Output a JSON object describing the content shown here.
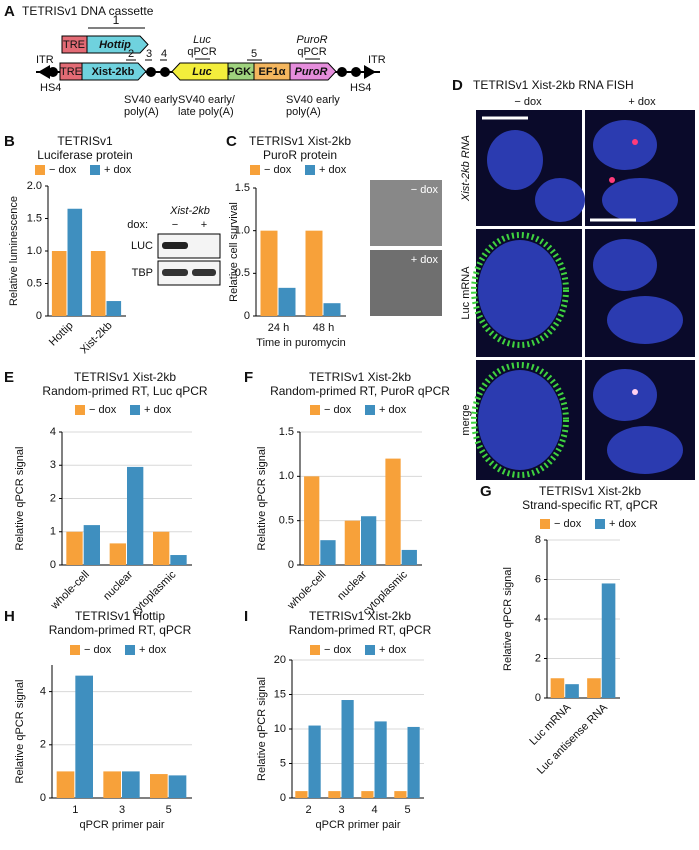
{
  "panel_labels": [
    "A",
    "B",
    "C",
    "D",
    "E",
    "F",
    "G",
    "H",
    "I"
  ],
  "diagram": {
    "title": "TETRISv1 DNA cassette",
    "primer_1": "1",
    "tre_top": "TRE",
    "hottip": "Hottip",
    "itr_left": "ITR",
    "hs4_left": "HS4",
    "tre": "TRE",
    "xist": "Xist-2kb",
    "primer_2": "2",
    "primer_3": "3",
    "primer_4": "4",
    "luc_qpcr": [
      "Luc",
      "qPCR"
    ],
    "luc": "Luc",
    "primer_5": "5",
    "pgk": "PGK-",
    "ef1a": "EF1α",
    "puror": "PuroR",
    "puror_qpcr": [
      "PuroR",
      "qPCR"
    ],
    "itr_right": "ITR",
    "hs4_right": "HS4",
    "polyA_1": [
      "SV40 early",
      "poly(A)"
    ],
    "polyA_2": [
      "SV40 early/",
      "late poly(A)"
    ],
    "polyA_3": [
      "SV40 early",
      "poly(A)"
    ]
  },
  "blot": {
    "gene": "Xist-2kb",
    "dox": "dox:",
    "minus": "−",
    "plus": "+",
    "bands": [
      "LUC",
      "TBP"
    ]
  },
  "survival_images": [
    "− dox",
    "+ dox"
  ],
  "fish": {
    "title": "TETRISv1 Xist-2kb RNA FISH",
    "columns": [
      "− dox",
      "+ dox"
    ],
    "rows": [
      "Xist-2kb RNA",
      "Luc mRNA",
      "merge"
    ]
  },
  "chart_data": [
    {
      "type": "bar",
      "title": "TETRISv1",
      "subtitle": "Luciferase protein",
      "ylabel": "Relative luminescence",
      "categories": [
        "Hottip",
        "Xist-2kb"
      ],
      "series": [
        {
          "name": "− dox",
          "color": "#f7a13a",
          "values": [
            1.0,
            1.0
          ]
        },
        {
          "name": "+ dox",
          "color": "#3f8fbf",
          "values": [
            1.65,
            0.23
          ]
        }
      ],
      "ylim": [
        0,
        2
      ],
      "yticks": [
        0,
        0.5,
        {
          "value": 1,
          "label": "1.0"
        },
        1.5,
        {
          "value": 2,
          "label": "2.0"
        }
      ],
      "grid": false
    },
    {
      "type": "bar",
      "title": "TETRISv1 Xist-2kb",
      "subtitle": "PuroR protein",
      "ylabel": "Relative cell survival",
      "xlabel": "Time in puromycin",
      "categories": [
        "24 h",
        "48 h"
      ],
      "series": [
        {
          "name": "− dox",
          "color": "#f7a13a",
          "values": [
            1.0,
            1.0
          ]
        },
        {
          "name": "+ dox",
          "color": "#3f8fbf",
          "values": [
            0.33,
            0.15
          ]
        }
      ],
      "ylim": [
        0,
        1.5
      ],
      "yticks": [
        0,
        0.5,
        {
          "value": 1,
          "label": "1.0"
        },
        1.5
      ],
      "grid": false
    },
    {
      "type": "bar",
      "title": "TETRISv1 Xist-2kb",
      "subtitle": "Random-primed RT, Luc qPCR",
      "ylabel": "Relative qPCR signal",
      "categories": [
        "whole-cell",
        "nuclear",
        "cytoplasmic"
      ],
      "series": [
        {
          "name": "− dox",
          "color": "#f7a13a",
          "values": [
            1.0,
            0.65,
            1.0
          ]
        },
        {
          "name": "+ dox",
          "color": "#3f8fbf",
          "values": [
            1.2,
            2.95,
            0.3
          ]
        }
      ],
      "ylim": [
        0,
        4
      ],
      "yticks": [
        0,
        1,
        2,
        3,
        4
      ],
      "grid": true
    },
    {
      "type": "bar",
      "title": "TETRISv1 Xist-2kb",
      "subtitle": "Random-primed RT, PuroR qPCR",
      "ylabel": "Relative qPCR signal",
      "categories": [
        "whole-cell",
        "nuclear",
        "cytoplasmic"
      ],
      "series": [
        {
          "name": "− dox",
          "color": "#f7a13a",
          "values": [
            1.0,
            0.5,
            1.2
          ]
        },
        {
          "name": "+ dox",
          "color": "#3f8fbf",
          "values": [
            0.28,
            0.55,
            0.17
          ]
        }
      ],
      "ylim": [
        0,
        1.5
      ],
      "yticks": [
        0,
        0.5,
        {
          "value": 1,
          "label": "1.0"
        },
        1.5
      ],
      "grid": true
    },
    {
      "type": "bar",
      "title": "TETRISv1 Xist-2kb",
      "subtitle": "Strand-specific RT, qPCR",
      "ylabel": "Relative qPCR signal",
      "categories": [
        "Luc mRNA",
        "Luc antisense RNA"
      ],
      "series": [
        {
          "name": "− dox",
          "color": "#f7a13a",
          "values": [
            1.0,
            1.0
          ]
        },
        {
          "name": "+ dox",
          "color": "#3f8fbf",
          "values": [
            0.7,
            5.8
          ]
        }
      ],
      "ylim": [
        0,
        8
      ],
      "yticks": [
        0,
        2,
        4,
        6,
        8
      ],
      "grid": true
    },
    {
      "type": "bar",
      "title": "TETRISv1 Hottip",
      "subtitle": "Random-primed RT, qPCR",
      "ylabel": "Relative qPCR signal",
      "xlabel": "qPCR primer pair",
      "categories": [
        "1",
        "3",
        "5"
      ],
      "series": [
        {
          "name": "− dox",
          "color": "#f7a13a",
          "values": [
            1.0,
            1.0,
            0.9
          ]
        },
        {
          "name": "+ dox",
          "color": "#3f8fbf",
          "values": [
            4.6,
            1.0,
            0.85
          ]
        }
      ],
      "ylim": [
        0,
        5
      ],
      "yticks": [
        0,
        2,
        4
      ],
      "grid": true
    },
    {
      "type": "bar",
      "title": "TETRISv1 Xist-2kb",
      "subtitle": "Random-primed RT, qPCR",
      "ylabel": "Relative qPCR signal",
      "xlabel": "qPCR primer pair",
      "categories": [
        "2",
        "3",
        "4",
        "5"
      ],
      "series": [
        {
          "name": "− dox",
          "color": "#f7a13a",
          "values": [
            1.0,
            1.0,
            1.0,
            1.0
          ]
        },
        {
          "name": "+ dox",
          "color": "#3f8fbf",
          "values": [
            10.5,
            14.2,
            11.1,
            10.3
          ]
        }
      ],
      "ylim": [
        0,
        20
      ],
      "yticks": [
        0,
        5,
        10,
        15,
        20
      ],
      "grid": true
    }
  ]
}
